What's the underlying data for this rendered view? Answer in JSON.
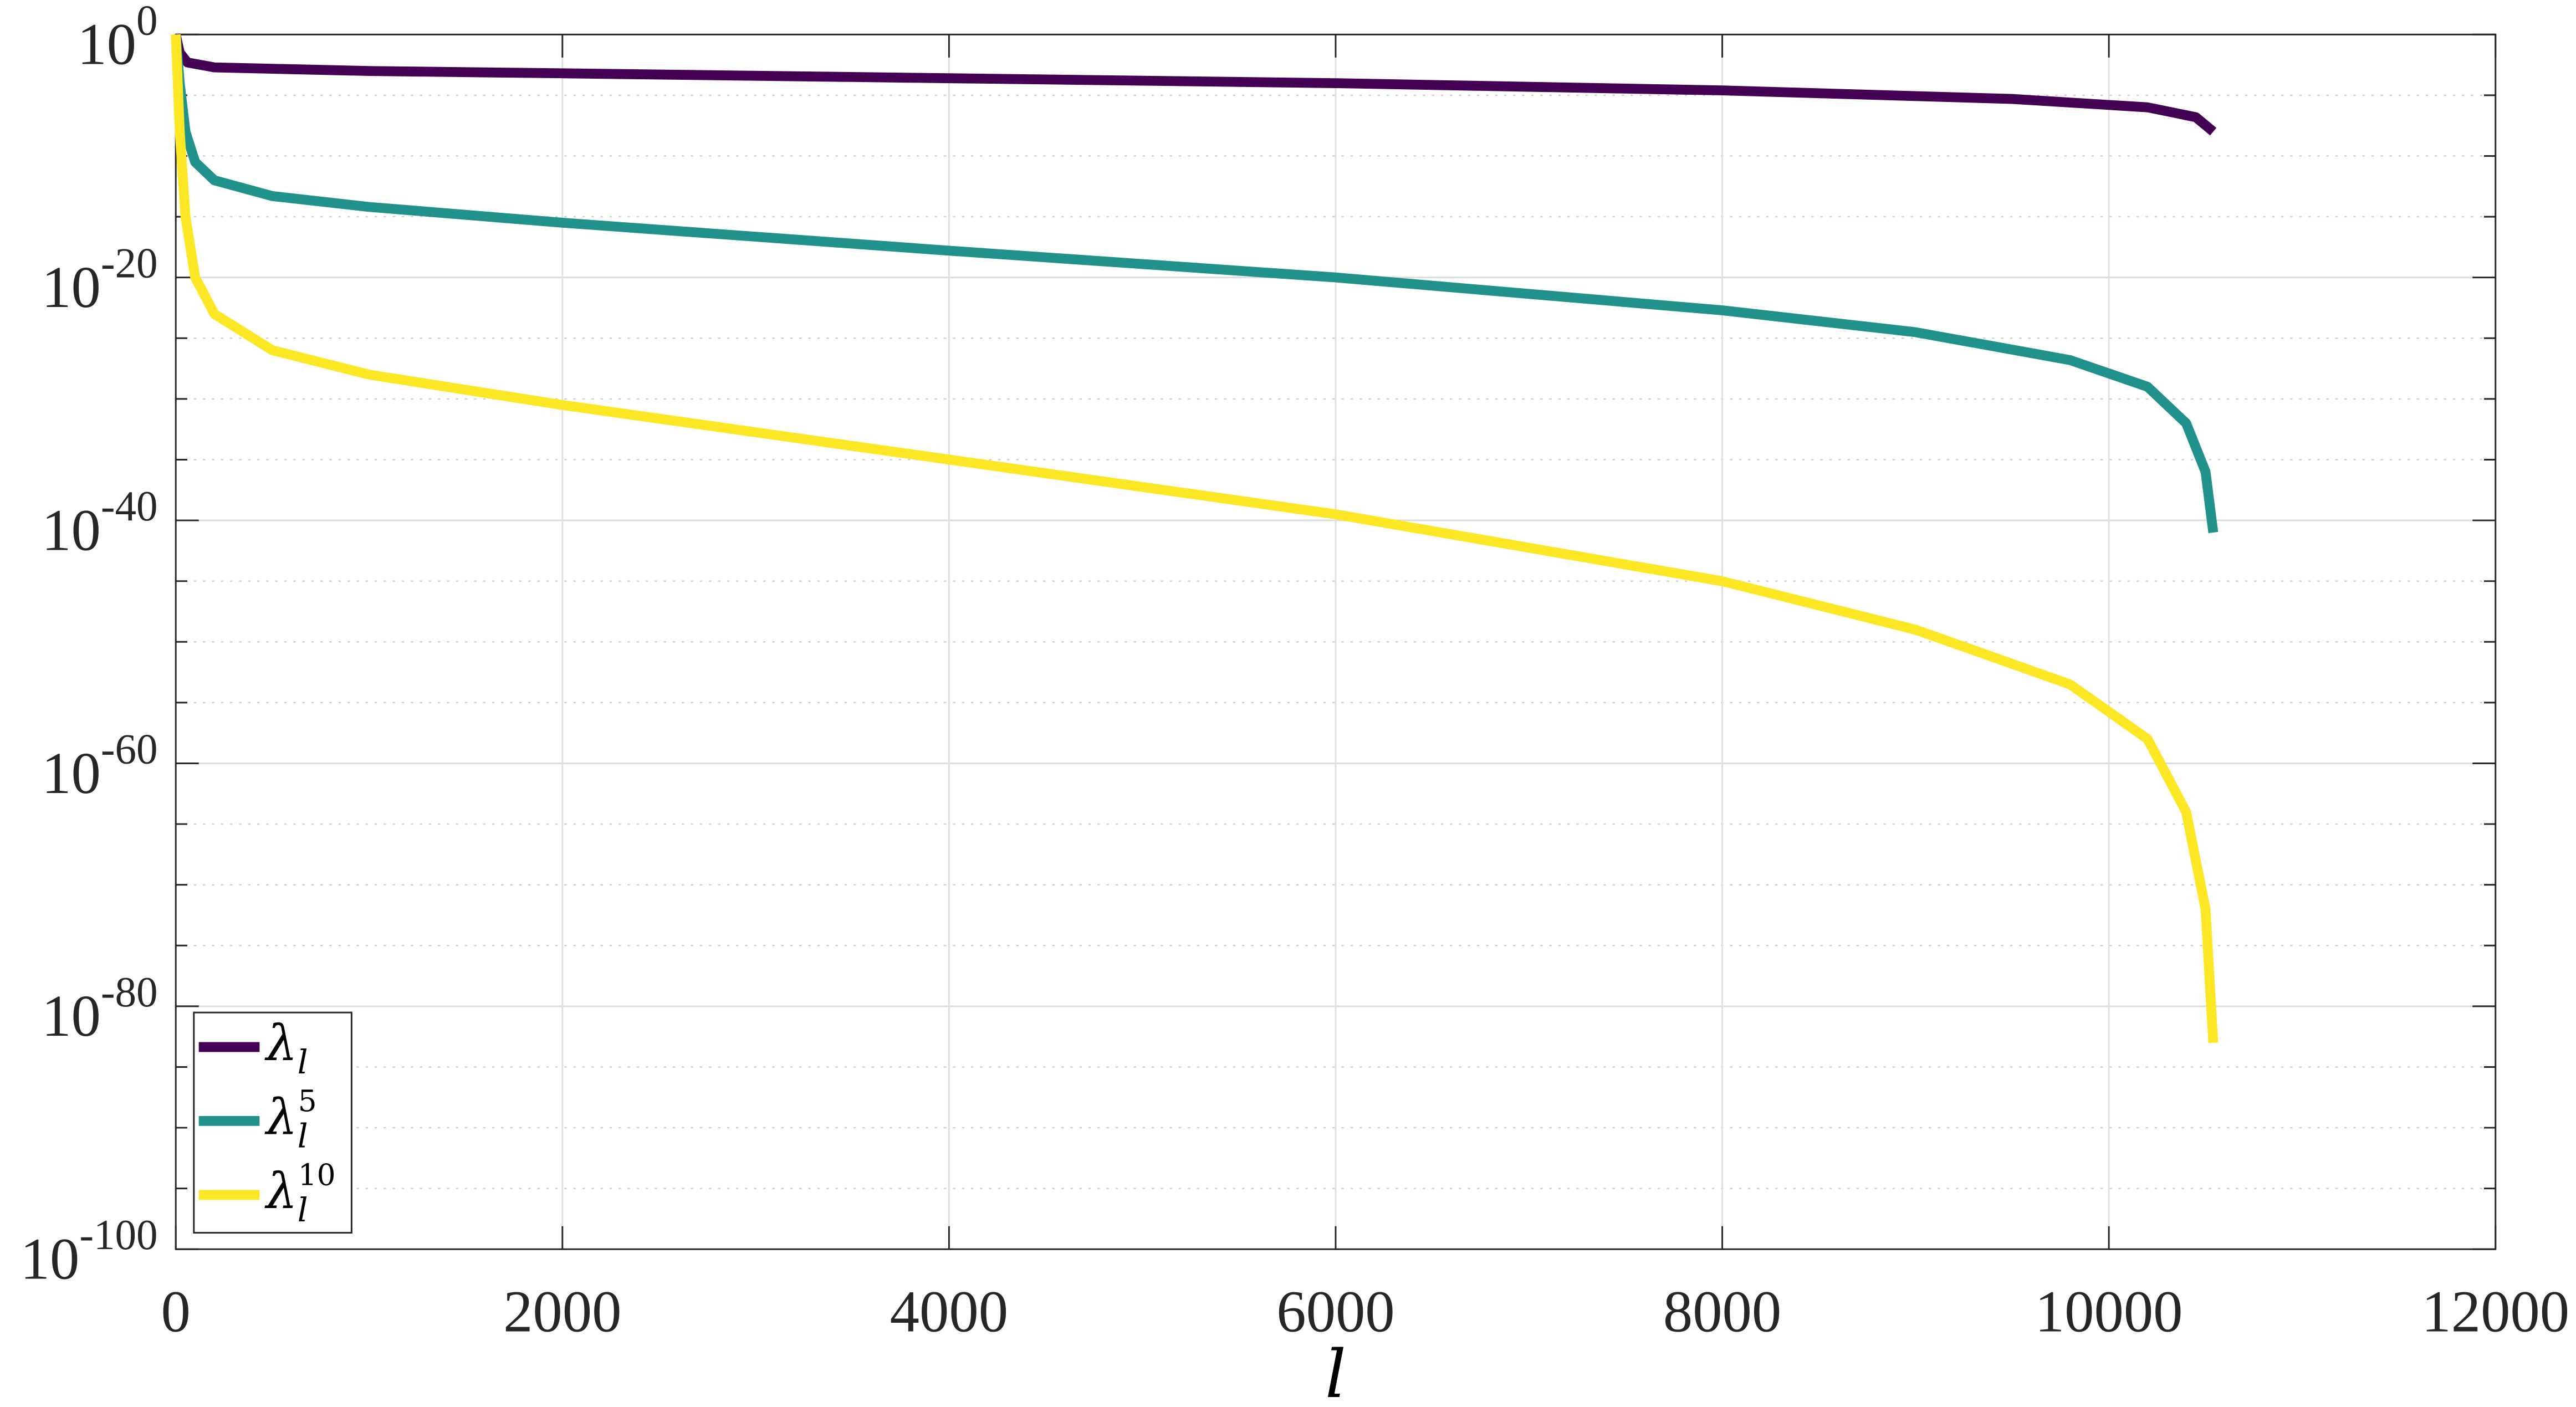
{
  "chart_data": {
    "type": "line",
    "title": "",
    "xlabel": "l",
    "ylabel": "",
    "yscale": "log",
    "xlim": [
      0,
      12000
    ],
    "ylim": [
      1e-100,
      1
    ],
    "x_ticks": [
      "0",
      "2000",
      "4000",
      "6000",
      "8000",
      "10000",
      "12000"
    ],
    "y_ticks": [
      {
        "base": "10",
        "exp": "0"
      },
      {
        "base": "10",
        "exp": "-20"
      },
      {
        "base": "10",
        "exp": "-40"
      },
      {
        "base": "10",
        "exp": "-60"
      },
      {
        "base": "10",
        "exp": "-80"
      },
      {
        "base": "10",
        "exp": "-100"
      }
    ],
    "grid": true,
    "legend_position": "lower-left",
    "series": [
      {
        "name": "λ_l",
        "label_base": "λ",
        "label_sub": "l",
        "label_sup": "",
        "color": "#440154",
        "x": [
          0,
          20,
          60,
          200,
          1000,
          2000,
          4000,
          6000,
          8000,
          9500,
          10200,
          10450,
          10540
        ],
        "log10y": [
          0,
          -1.5,
          -2.3,
          -2.7,
          -3.0,
          -3.2,
          -3.6,
          -4.0,
          -4.6,
          -5.3,
          -6.0,
          -6.8,
          -8.0
        ]
      },
      {
        "name": "λ_l^5",
        "label_base": "λ",
        "label_sub": "l",
        "label_sup": "5",
        "color": "#21918c",
        "x": [
          0,
          20,
          50,
          100,
          200,
          500,
          1000,
          2000,
          4000,
          6000,
          8000,
          9000,
          9800,
          10200,
          10400,
          10500,
          10540
        ],
        "log10y": [
          0,
          -4,
          -8,
          -10.5,
          -12,
          -13.3,
          -14.2,
          -15.5,
          -17.8,
          -20.0,
          -22.7,
          -24.5,
          -26.8,
          -29.0,
          -32.0,
          -36.0,
          -41.0
        ]
      },
      {
        "name": "λ_l^10",
        "label_base": "λ",
        "label_sub": "l",
        "label_sup": "10",
        "color": "#fde725",
        "x": [
          0,
          20,
          50,
          100,
          200,
          500,
          1000,
          2000,
          4000,
          6000,
          8000,
          9000,
          9800,
          10200,
          10400,
          10500,
          10540
        ],
        "log10y": [
          0,
          -8,
          -15,
          -20,
          -23,
          -26,
          -28,
          -30.5,
          -35,
          -39.5,
          -45,
          -49,
          -53.5,
          -58,
          -64,
          -72,
          -83
        ]
      }
    ]
  }
}
